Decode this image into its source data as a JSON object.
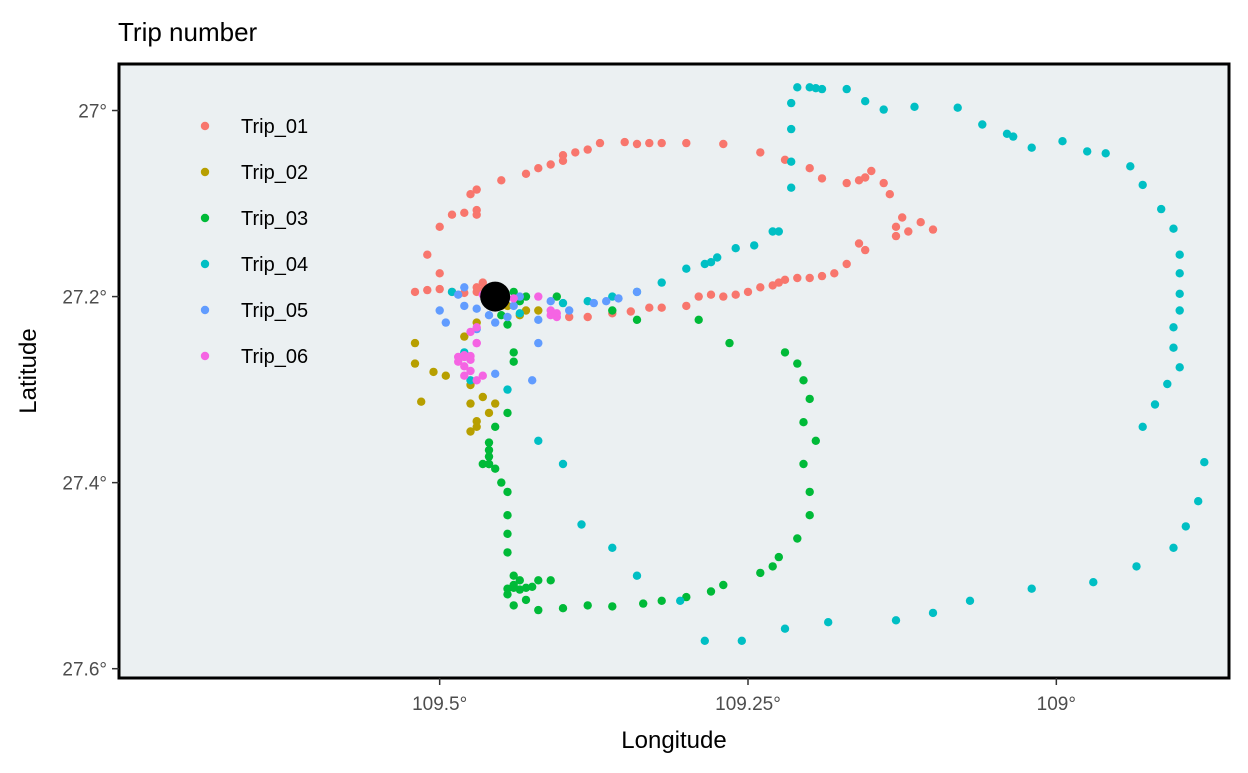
{
  "chart_data": {
    "type": "scatter",
    "title": "Trip number",
    "xlabel": "Longitude",
    "ylabel": "Latitude",
    "x_reversed": true,
    "y_reversed": true,
    "xlim": [
      109.76,
      108.86
    ],
    "ylim": [
      26.95,
      27.61
    ],
    "x_ticks": [
      109.5,
      109.25,
      109
    ],
    "x_tick_labels": [
      "109.5°",
      "109.25°",
      "109°"
    ],
    "y_ticks": [
      27.0,
      27.2,
      27.4,
      27.6
    ],
    "y_tick_labels": [
      "27°",
      "27.2°",
      "27.4°",
      "27.6°"
    ],
    "panel_background": "#EBF0F2",
    "grid": false,
    "legend_position": "top-left-inside",
    "start_point": {
      "x": 109.455,
      "y": 27.2,
      "color": "#000000"
    },
    "series": [
      {
        "name": "Trip_01",
        "color": "#F8766D",
        "points": [
          [
            109.52,
            27.195
          ],
          [
            109.51,
            27.193
          ],
          [
            109.5,
            27.192
          ],
          [
            109.49,
            27.195
          ],
          [
            109.48,
            27.196
          ],
          [
            109.47,
            27.19
          ],
          [
            109.465,
            27.185
          ],
          [
            109.47,
            27.195
          ],
          [
            109.465,
            27.193
          ],
          [
            109.5,
            27.175
          ],
          [
            109.51,
            27.155
          ],
          [
            109.5,
            27.125
          ],
          [
            109.49,
            27.112
          ],
          [
            109.48,
            27.11
          ],
          [
            109.47,
            27.112
          ],
          [
            109.47,
            27.107
          ],
          [
            109.475,
            27.09
          ],
          [
            109.47,
            27.085
          ],
          [
            109.45,
            27.075
          ],
          [
            109.43,
            27.068
          ],
          [
            109.42,
            27.062
          ],
          [
            109.41,
            27.058
          ],
          [
            109.4,
            27.054
          ],
          [
            109.4,
            27.048
          ],
          [
            109.39,
            27.045
          ],
          [
            109.38,
            27.042
          ],
          [
            109.37,
            27.035
          ],
          [
            109.35,
            27.034
          ],
          [
            109.34,
            27.036
          ],
          [
            109.33,
            27.035
          ],
          [
            109.32,
            27.035
          ],
          [
            109.3,
            27.035
          ],
          [
            109.27,
            27.036
          ],
          [
            109.24,
            27.045
          ],
          [
            109.22,
            27.053
          ],
          [
            109.2,
            27.062
          ],
          [
            109.19,
            27.073
          ],
          [
            109.17,
            27.078
          ],
          [
            109.16,
            27.075
          ],
          [
            109.15,
            27.065
          ],
          [
            109.155,
            27.072
          ],
          [
            109.14,
            27.078
          ],
          [
            109.135,
            27.09
          ],
          [
            109.125,
            27.115
          ],
          [
            109.12,
            27.13
          ],
          [
            109.1,
            27.128
          ],
          [
            109.11,
            27.12
          ],
          [
            109.13,
            27.125
          ],
          [
            109.13,
            27.135
          ],
          [
            109.155,
            27.15
          ],
          [
            109.16,
            27.143
          ],
          [
            109.17,
            27.165
          ],
          [
            109.18,
            27.175
          ],
          [
            109.19,
            27.178
          ],
          [
            109.2,
            27.18
          ],
          [
            109.21,
            27.18
          ],
          [
            109.22,
            27.182
          ],
          [
            109.225,
            27.185
          ],
          [
            109.23,
            27.188
          ],
          [
            109.24,
            27.19
          ],
          [
            109.25,
            27.195
          ],
          [
            109.26,
            27.198
          ],
          [
            109.27,
            27.2
          ],
          [
            109.28,
            27.198
          ],
          [
            109.29,
            27.2
          ],
          [
            109.3,
            27.21
          ],
          [
            109.32,
            27.212
          ],
          [
            109.33,
            27.212
          ],
          [
            109.345,
            27.216
          ],
          [
            109.36,
            27.218
          ],
          [
            109.38,
            27.222
          ],
          [
            109.395,
            27.222
          ]
        ]
      },
      {
        "name": "Trip_02",
        "color": "#B79F00",
        "points": [
          [
            109.445,
            27.21
          ],
          [
            109.43,
            27.215
          ],
          [
            109.42,
            27.215
          ],
          [
            109.435,
            27.22
          ],
          [
            109.45,
            27.21
          ],
          [
            109.47,
            27.228
          ],
          [
            109.48,
            27.243
          ],
          [
            109.52,
            27.25
          ],
          [
            109.52,
            27.272
          ],
          [
            109.505,
            27.281
          ],
          [
            109.495,
            27.285
          ],
          [
            109.475,
            27.295
          ],
          [
            109.465,
            27.308
          ],
          [
            109.475,
            27.315
          ],
          [
            109.455,
            27.315
          ],
          [
            109.46,
            27.325
          ],
          [
            109.515,
            27.313
          ],
          [
            109.47,
            27.334
          ],
          [
            109.475,
            27.345
          ],
          [
            109.47,
            27.34
          ]
        ]
      },
      {
        "name": "Trip_03",
        "color": "#00BA38",
        "points": [
          [
            109.44,
            27.195
          ],
          [
            109.435,
            27.205
          ],
          [
            109.405,
            27.2
          ],
          [
            109.36,
            27.215
          ],
          [
            109.34,
            27.225
          ],
          [
            109.29,
            27.225
          ],
          [
            109.265,
            27.25
          ],
          [
            109.22,
            27.26
          ],
          [
            109.21,
            27.272
          ],
          [
            109.205,
            27.29
          ],
          [
            109.2,
            27.31
          ],
          [
            109.205,
            27.335
          ],
          [
            109.195,
            27.355
          ],
          [
            109.205,
            27.38
          ],
          [
            109.2,
            27.41
          ],
          [
            109.2,
            27.435
          ],
          [
            109.21,
            27.46
          ],
          [
            109.225,
            27.48
          ],
          [
            109.23,
            27.49
          ],
          [
            109.24,
            27.497
          ],
          [
            109.27,
            27.51
          ],
          [
            109.28,
            27.517
          ],
          [
            109.3,
            27.523
          ],
          [
            109.32,
            27.527
          ],
          [
            109.335,
            27.53
          ],
          [
            109.36,
            27.533
          ],
          [
            109.38,
            27.532
          ],
          [
            109.4,
            27.535
          ],
          [
            109.42,
            27.537
          ],
          [
            109.44,
            27.532
          ],
          [
            109.43,
            27.526
          ],
          [
            109.435,
            27.515
          ],
          [
            109.41,
            27.505
          ],
          [
            109.42,
            27.505
          ],
          [
            109.425,
            27.512
          ],
          [
            109.43,
            27.513
          ],
          [
            109.435,
            27.505
          ],
          [
            109.44,
            27.51
          ],
          [
            109.44,
            27.513
          ],
          [
            109.445,
            27.514
          ],
          [
            109.445,
            27.52
          ],
          [
            109.44,
            27.5
          ],
          [
            109.445,
            27.475
          ],
          [
            109.445,
            27.455
          ],
          [
            109.445,
            27.435
          ],
          [
            109.445,
            27.41
          ],
          [
            109.45,
            27.4
          ],
          [
            109.455,
            27.385
          ],
          [
            109.46,
            27.38
          ],
          [
            109.46,
            27.38
          ],
          [
            109.465,
            27.38
          ],
          [
            109.46,
            27.372
          ],
          [
            109.46,
            27.365
          ],
          [
            109.46,
            27.357
          ],
          [
            109.455,
            27.34
          ],
          [
            109.445,
            27.325
          ],
          [
            109.44,
            27.27
          ],
          [
            109.44,
            27.26
          ],
          [
            109.445,
            27.23
          ],
          [
            109.45,
            27.22
          ],
          [
            109.43,
            27.2
          ]
        ]
      },
      {
        "name": "Trip_04",
        "color": "#00BFC4",
        "points": [
          [
            109.435,
            27.218
          ],
          [
            109.4,
            27.207
          ],
          [
            109.38,
            27.205
          ],
          [
            109.36,
            27.2
          ],
          [
            109.34,
            27.195
          ],
          [
            109.32,
            27.185
          ],
          [
            109.3,
            27.17
          ],
          [
            109.285,
            27.165
          ],
          [
            109.28,
            27.163
          ],
          [
            109.275,
            27.158
          ],
          [
            109.26,
            27.148
          ],
          [
            109.245,
            27.145
          ],
          [
            109.23,
            27.13
          ],
          [
            109.225,
            27.13
          ],
          [
            109.215,
            27.083
          ],
          [
            109.215,
            27.055
          ],
          [
            109.215,
            27.02
          ],
          [
            109.215,
            26.992
          ],
          [
            109.21,
            26.975
          ],
          [
            109.2,
            26.975
          ],
          [
            109.195,
            26.976
          ],
          [
            109.19,
            26.977
          ],
          [
            109.17,
            26.977
          ],
          [
            109.155,
            26.99
          ],
          [
            109.14,
            26.999
          ],
          [
            109.115,
            26.996
          ],
          [
            109.08,
            26.997
          ],
          [
            109.06,
            27.015
          ],
          [
            109.04,
            27.025
          ],
          [
            109.035,
            27.028
          ],
          [
            109.02,
            27.04
          ],
          [
            108.995,
            27.033
          ],
          [
            108.975,
            27.044
          ],
          [
            108.96,
            27.046
          ],
          [
            108.94,
            27.06
          ],
          [
            108.93,
            27.08
          ],
          [
            108.915,
            27.106
          ],
          [
            108.905,
            27.127
          ],
          [
            108.9,
            27.155
          ],
          [
            108.9,
            27.175
          ],
          [
            108.9,
            27.197
          ],
          [
            108.9,
            27.215
          ],
          [
            108.905,
            27.233
          ],
          [
            108.905,
            27.255
          ],
          [
            108.9,
            27.276
          ],
          [
            108.91,
            27.294
          ],
          [
            108.92,
            27.316
          ],
          [
            108.93,
            27.34
          ],
          [
            108.88,
            27.378
          ],
          [
            108.885,
            27.42
          ],
          [
            108.895,
            27.447
          ],
          [
            108.905,
            27.47
          ],
          [
            108.935,
            27.49
          ],
          [
            108.97,
            27.507
          ],
          [
            109.02,
            27.514
          ],
          [
            109.07,
            27.527
          ],
          [
            109.1,
            27.54
          ],
          [
            109.13,
            27.548
          ],
          [
            109.185,
            27.55
          ],
          [
            109.22,
            27.557
          ],
          [
            109.255,
            27.57
          ],
          [
            109.285,
            27.57
          ],
          [
            109.305,
            27.527
          ],
          [
            109.34,
            27.5
          ],
          [
            109.36,
            27.47
          ],
          [
            109.385,
            27.445
          ],
          [
            109.4,
            27.38
          ],
          [
            109.42,
            27.355
          ],
          [
            109.445,
            27.3
          ],
          [
            109.475,
            27.29
          ],
          [
            109.48,
            27.26
          ],
          [
            109.49,
            27.195
          ]
        ]
      },
      {
        "name": "Trip_05",
        "color": "#619CFF",
        "points": [
          [
            109.34,
            27.195
          ],
          [
            109.355,
            27.202
          ],
          [
            109.365,
            27.205
          ],
          [
            109.375,
            27.207
          ],
          [
            109.395,
            27.215
          ],
          [
            109.42,
            27.225
          ],
          [
            109.435,
            27.2
          ],
          [
            109.44,
            27.21
          ],
          [
            109.445,
            27.222
          ],
          [
            109.455,
            27.228
          ],
          [
            109.46,
            27.22
          ],
          [
            109.47,
            27.213
          ],
          [
            109.48,
            27.21
          ],
          [
            109.485,
            27.198
          ],
          [
            109.48,
            27.19
          ],
          [
            109.5,
            27.215
          ],
          [
            109.495,
            27.228
          ],
          [
            109.47,
            27.235
          ],
          [
            109.455,
            27.283
          ],
          [
            109.425,
            27.29
          ],
          [
            109.42,
            27.25
          ],
          [
            109.41,
            27.205
          ]
        ]
      },
      {
        "name": "Trip_06",
        "color": "#F564E3",
        "points": [
          [
            109.465,
            27.198
          ],
          [
            109.44,
            27.202
          ],
          [
            109.42,
            27.2
          ],
          [
            109.41,
            27.215
          ],
          [
            109.405,
            27.218
          ],
          [
            109.405,
            27.222
          ],
          [
            109.41,
            27.22
          ],
          [
            109.47,
            27.233
          ],
          [
            109.475,
            27.238
          ],
          [
            109.47,
            27.25
          ],
          [
            109.475,
            27.264
          ],
          [
            109.48,
            27.265
          ],
          [
            109.485,
            27.27
          ],
          [
            109.48,
            27.275
          ],
          [
            109.475,
            27.28
          ],
          [
            109.48,
            27.285
          ],
          [
            109.47,
            27.29
          ],
          [
            109.465,
            27.285
          ],
          [
            109.475,
            27.268
          ],
          [
            109.48,
            27.263
          ],
          [
            109.485,
            27.265
          ],
          [
            109.47,
            27.25
          ]
        ]
      }
    ]
  }
}
